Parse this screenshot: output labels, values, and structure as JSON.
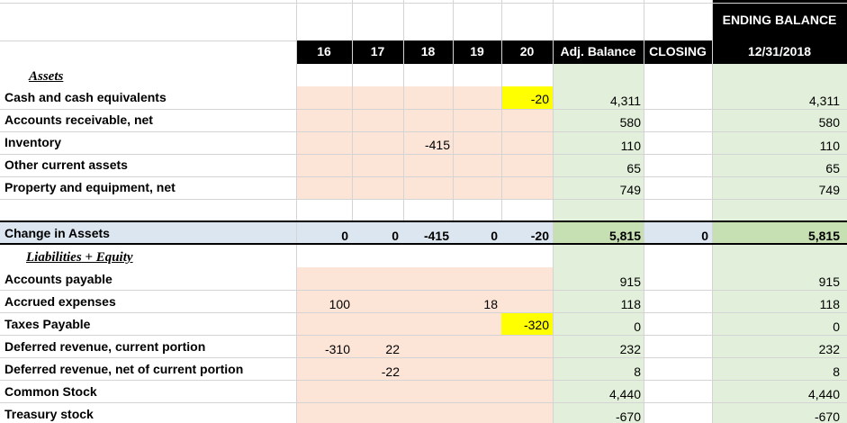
{
  "header": {
    "top_right": "ENDING BALANCE",
    "columns": [
      "16",
      "17",
      "18",
      "19",
      "20",
      "Adj. Balance",
      "CLOSING",
      "12/31/2018"
    ]
  },
  "colors": {
    "header_bg": "#000000",
    "peach": "#fce4d6",
    "green": "#e2efda",
    "total_green": "#c6e0b4",
    "total_blue": "#dce6f1",
    "yellow_highlight": "#ffff00"
  },
  "assets": {
    "section_label": "Assets",
    "rows": [
      {
        "label": "Cash and cash equivalents",
        "c16": "",
        "c17": "",
        "c18": "",
        "c19": "",
        "c20": "-20",
        "adj": "4,311",
        "closing": "",
        "ending": "4,311"
      },
      {
        "label": "Accounts receivable, net",
        "c16": "",
        "c17": "",
        "c18": "",
        "c19": "",
        "c20": "",
        "adj": "580",
        "closing": "",
        "ending": "580"
      },
      {
        "label": "Inventory",
        "c16": "",
        "c17": "",
        "c18": "-415",
        "c19": "",
        "c20": "",
        "adj": "110",
        "closing": "",
        "ending": "110"
      },
      {
        "label": "Other current assets",
        "c16": "",
        "c17": "",
        "c18": "",
        "c19": "",
        "c20": "",
        "adj": "65",
        "closing": "",
        "ending": "65"
      },
      {
        "label": "Property and equipment, net",
        "c16": "",
        "c17": "",
        "c18": "",
        "c19": "",
        "c20": "",
        "adj": "749",
        "closing": "",
        "ending": "749"
      }
    ]
  },
  "total_row": {
    "label": "Change in Assets",
    "c16": "0",
    "c17": "0",
    "c18": "-415",
    "c19": "0",
    "c20": "-20",
    "adj": "5,815",
    "closing": "0",
    "ending": "5,815"
  },
  "liabilities": {
    "section_label": "Liabilities + Equity",
    "rows": [
      {
        "label": "Accounts payable",
        "c16": "",
        "c17": "",
        "c18": "",
        "c19": "",
        "c20": "",
        "adj": "915",
        "closing": "",
        "ending": "915"
      },
      {
        "label": "Accrued expenses",
        "c16": "100",
        "c17": "",
        "c18": "",
        "c19": "18",
        "c20": "",
        "adj": "118",
        "closing": "",
        "ending": "118"
      },
      {
        "label": "Taxes Payable",
        "c16": "",
        "c17": "",
        "c18": "",
        "c19": "",
        "c20": "-320",
        "adj": "0",
        "closing": "",
        "ending": "0"
      },
      {
        "label": "Deferred revenue, current portion",
        "c16": "-310",
        "c17": "22",
        "c18": "",
        "c19": "",
        "c20": "",
        "adj": "232",
        "closing": "",
        "ending": "232"
      },
      {
        "label": "Deferred revenue, net of current portion",
        "c16": "",
        "c17": "-22",
        "c18": "",
        "c19": "",
        "c20": "",
        "adj": "8",
        "closing": "",
        "ending": "8"
      },
      {
        "label": "Common Stock",
        "c16": "",
        "c17": "",
        "c18": "",
        "c19": "",
        "c20": "",
        "adj": "4,440",
        "closing": "",
        "ending": "4,440"
      },
      {
        "label": "Treasury stock",
        "c16": "",
        "c17": "",
        "c18": "",
        "c19": "",
        "c20": "",
        "adj": "-670",
        "closing": "",
        "ending": "-670"
      }
    ]
  }
}
